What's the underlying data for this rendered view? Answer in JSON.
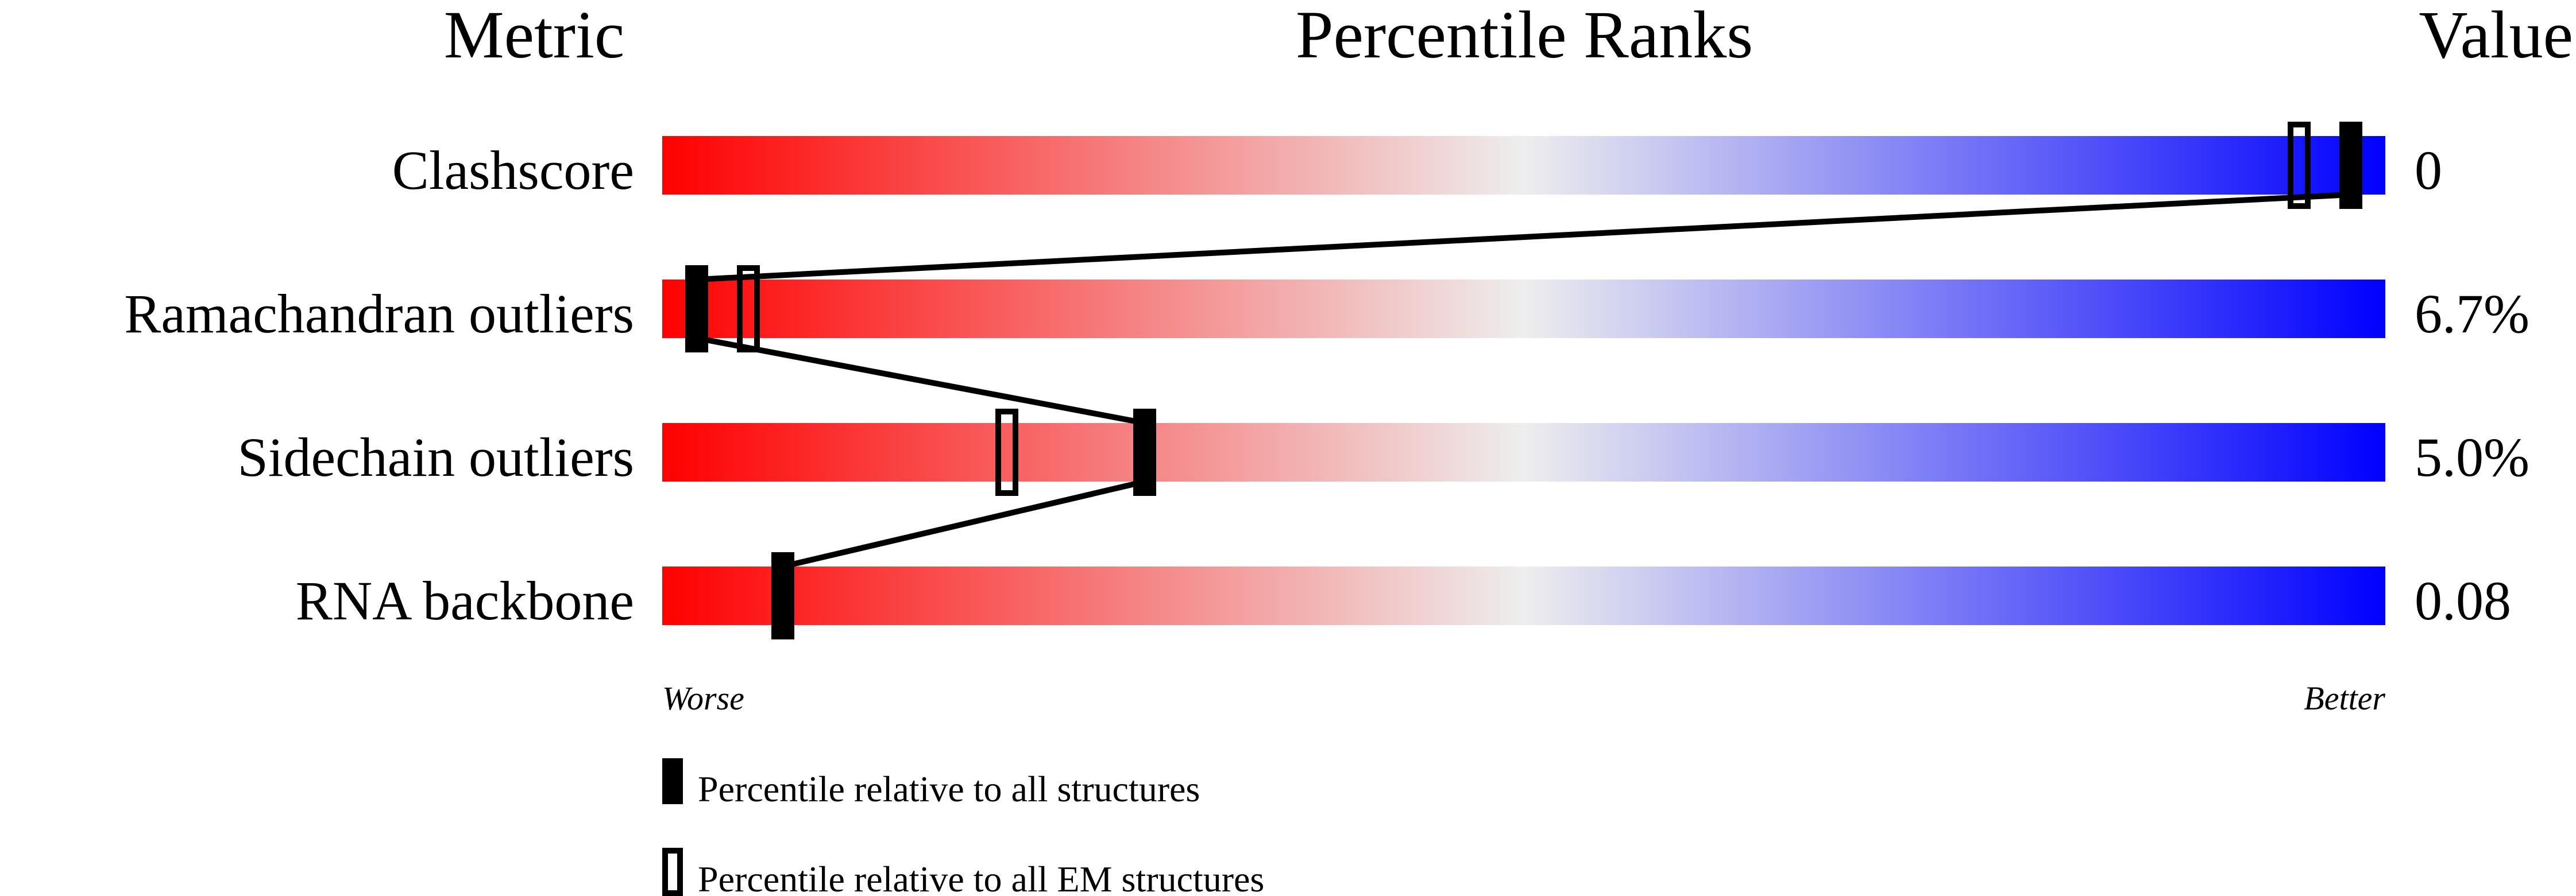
{
  "chart_data": {
    "type": "percentile-ranks",
    "headers": {
      "metric": "Metric",
      "ranks": "Percentile Ranks",
      "value": "Value"
    },
    "xlim": [
      0,
      100
    ],
    "axis_labels": {
      "left": "Worse",
      "right": "Better"
    },
    "colors": {
      "worse": "#ff0000",
      "middle": "#eeeeee",
      "better": "#0000ff",
      "marker": "#000000"
    },
    "rows": [
      {
        "metric": "Clashscore",
        "value": "0",
        "percentile_all": 98,
        "percentile_em": 95
      },
      {
        "metric": "Ramachandran outliers",
        "value": "6.7%",
        "percentile_all": 2,
        "percentile_em": 5
      },
      {
        "metric": "Sidechain outliers",
        "value": "5.0%",
        "percentile_all": 28,
        "percentile_em": 20
      },
      {
        "metric": "RNA backbone",
        "value": "0.08",
        "percentile_all": 7,
        "percentile_em": null
      }
    ],
    "legend": [
      {
        "marker": "filled",
        "label": "Percentile relative to all structures"
      },
      {
        "marker": "hollow",
        "label": "Percentile relative to all EM structures"
      }
    ]
  }
}
